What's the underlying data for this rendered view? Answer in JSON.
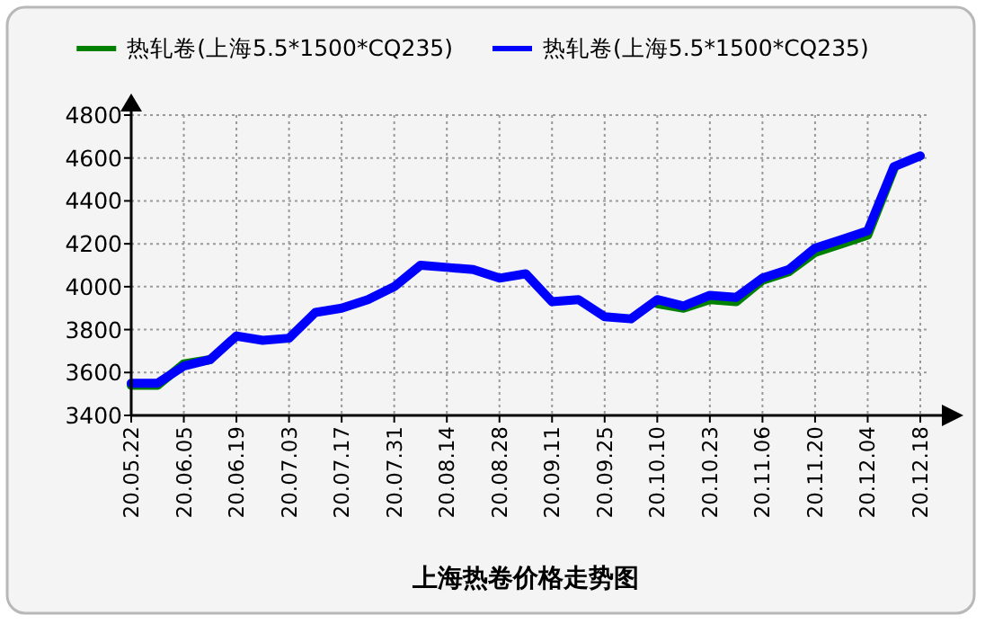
{
  "chart_data": {
    "type": "line",
    "title": "上海热卷价格走势图",
    "categories": [
      "20.05.22",
      null,
      "20.06.05",
      null,
      "20.06.19",
      null,
      "20.07.03",
      null,
      "20.07.17",
      null,
      "20.07.31",
      null,
      "20.08.14",
      null,
      "20.08.28",
      null,
      "20.09.11",
      null,
      "20.09.25",
      null,
      "20.10.10",
      null,
      "20.10.23",
      null,
      "20.11.06",
      null,
      "20.11.20",
      null,
      "20.12.04",
      null,
      "20.12.18"
    ],
    "series": [
      {
        "name": "热轧卷(上海5.5*1500*CQ235)",
        "color": "#008000",
        "values": [
          3540,
          3540,
          3640,
          3660,
          null,
          null,
          null,
          null,
          null,
          null,
          null,
          null,
          null,
          null,
          null,
          null,
          null,
          null,
          null,
          null,
          3920,
          3900,
          3940,
          3930,
          4030,
          4070,
          4160,
          4200,
          4240,
          4550,
          null
        ]
      },
      {
        "name": "热轧卷(上海5.5*1500*CQ235)",
        "color": "#0000ff",
        "values": [
          3550,
          3550,
          3630,
          3660,
          3770,
          3750,
          3760,
          3880,
          3900,
          3940,
          4000,
          4100,
          4090,
          4080,
          4040,
          4060,
          3930,
          3940,
          3860,
          3850,
          3940,
          3910,
          3960,
          3950,
          4040,
          4080,
          4180,
          4220,
          4260,
          4560,
          4610
        ]
      }
    ],
    "ylim": [
      3400,
      4800
    ],
    "yticks": [
      3400,
      3600,
      3800,
      4000,
      4200,
      4400,
      4600,
      4800
    ],
    "grid": true,
    "legend": "top"
  }
}
